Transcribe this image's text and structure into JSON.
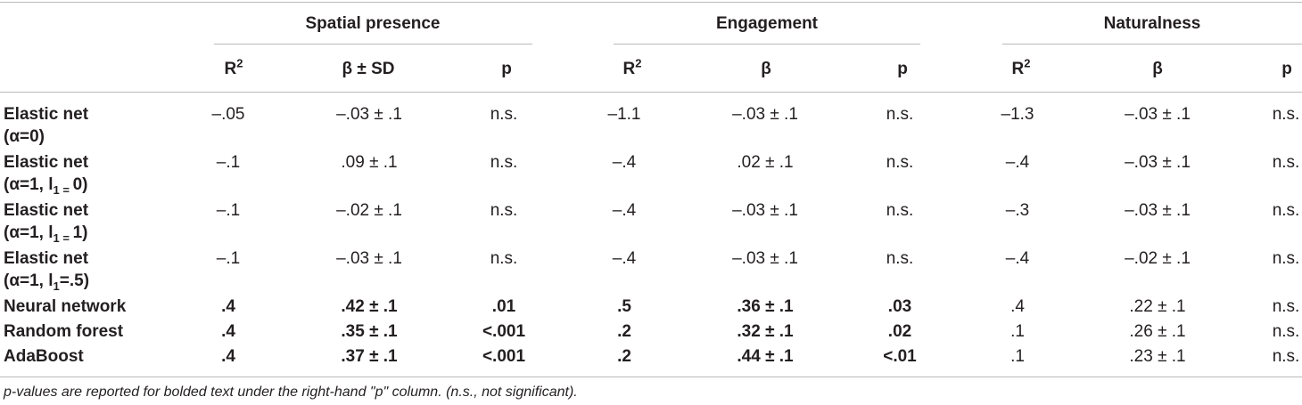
{
  "groups": [
    "Spatial presence",
    "Engagement",
    "Naturalness"
  ],
  "subheaders": {
    "spatial": {
      "r2": "R",
      "r2_sup": "2",
      "beta": "β ± SD",
      "p": "p"
    },
    "engagement": {
      "r2": "R",
      "r2_sup": "2",
      "beta": "β",
      "p": "p"
    },
    "naturalness": {
      "r2": "R",
      "r2_sup": "2",
      "beta": "β",
      "p": "p"
    }
  },
  "rows": [
    {
      "label1": "Elastic net",
      "label2": "(α=0)",
      "sp_r2": "–.05",
      "sp_beta": "–.03 ± .1",
      "sp_p": "n.s.",
      "en_r2": "–1.1",
      "en_beta": "–.03 ± .1",
      "en_p": "n.s.",
      "na_r2": "–1.3",
      "na_beta": "–.03 ± .1",
      "na_p": "n.s."
    },
    {
      "label1": "Elastic net",
      "label2a": "(α=1, l",
      "label2sub": "1 = ",
      "label2b": "0)",
      "sp_r2": "–.1",
      "sp_beta": ".09 ± .1",
      "sp_p": "n.s.",
      "en_r2": "–.4",
      "en_beta": ".02 ± .1",
      "en_p": "n.s.",
      "na_r2": "–.4",
      "na_beta": "–.03 ± .1",
      "na_p": "n.s."
    },
    {
      "label1": "Elastic net",
      "label2a": "(α=1, l",
      "label2sub": "1 = ",
      "label2b": "1)",
      "sp_r2": "–.1",
      "sp_beta": "–.02 ± .1",
      "sp_p": "n.s.",
      "en_r2": "–.4",
      "en_beta": "–.03 ± .1",
      "en_p": "n.s.",
      "na_r2": "–.3",
      "na_beta": "–.03 ± .1",
      "na_p": "n.s."
    },
    {
      "label1": "Elastic net",
      "label2a": "(α=1, l",
      "label2sub": "1",
      "label2b": "=.5)",
      "sp_r2": "–.1",
      "sp_beta": "–.03 ± .1",
      "sp_p": "n.s.",
      "en_r2": "–.4",
      "en_beta": "–.03 ± .1",
      "en_p": "n.s.",
      "na_r2": "–.4",
      "na_beta": "–.02 ± .1",
      "na_p": "n.s."
    },
    {
      "label1": "Neural network",
      "sp_r2": ".4",
      "sp_beta": ".42 ± .1",
      "sp_p": ".01",
      "en_r2": ".5",
      "en_beta": ".36 ± .1",
      "en_p": ".03",
      "na_r2": ".4",
      "na_beta": ".22 ± .1",
      "na_p": "n.s."
    },
    {
      "label1": "Random forest",
      "sp_r2": ".4",
      "sp_beta": ".35 ± .1",
      "sp_p": "<.001",
      "en_r2": ".2",
      "en_beta": ".32 ± .1",
      "en_p": ".02",
      "na_r2": ".1",
      "na_beta": ".26 ± .1",
      "na_p": "n.s."
    },
    {
      "label1": "AdaBoost",
      "sp_r2": ".4",
      "sp_beta": ".37 ± .1",
      "sp_p": "<.001",
      "en_r2": ".2",
      "en_beta": ".44 ± .1",
      "en_p": "<.01",
      "na_r2": ".1",
      "na_beta": ".23 ± .1",
      "na_p": "n.s."
    }
  ],
  "footnote": "p-values are reported for bolded text under the right-hand \"p\" column. (n.s., not significant)."
}
